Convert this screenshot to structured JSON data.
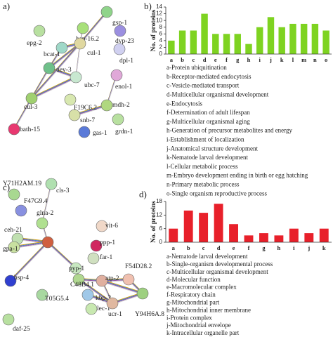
{
  "networks": [
    {
      "panel_label": "a)",
      "nodes": [
        "gsp-1",
        "hsp-16.2",
        "epg-2",
        "dyp-23",
        "dpl-1",
        "bcat-1",
        "cul-1",
        "uev-3",
        "ubc-7",
        "enol-1",
        "F19C6.2",
        "mdh-2",
        "cul-3",
        "snb-7",
        "gas-1",
        "grdn-1",
        "bath-15"
      ]
    },
    {
      "panel_label": "c)",
      "nodes": [
        "Y71H2AM.19",
        "cls-3",
        "F47G9.4",
        "glna-2",
        "vit-6",
        "ppp-1",
        "ceh-21",
        "far-1",
        "gpa-1",
        "pyp-1",
        "atp-2",
        "F54D28.2",
        "C48B4.1",
        "hsp-4",
        "T05G5.4",
        "kbp-3",
        "lec-1",
        "ucr-1",
        "Y94H6A.8",
        "daf-25"
      ]
    }
  ],
  "chart_data": [
    {
      "type": "bar",
      "panel_label": "b)",
      "ylabel": "No. of proteins",
      "categories": [
        "a",
        "b",
        "c",
        "d",
        "e",
        "f",
        "g",
        "h",
        "i",
        "j",
        "k",
        "l",
        "m",
        "n",
        "o"
      ],
      "values": [
        4,
        7,
        7,
        12,
        6,
        6,
        6,
        3,
        8,
        11,
        8,
        9,
        9,
        9,
        7
      ],
      "color": "#7ed321",
      "ylim": [
        0,
        14
      ],
      "yticks": [
        0,
        2,
        4,
        6,
        8,
        10,
        12,
        14
      ],
      "descriptions": [
        "a-Protein ubiquitination",
        "b-Receptor-mediated endocytosis",
        "c-Vesicle-mediated transport",
        "d-Multicellular organismal development",
        "e-Endocytosis",
        "f-Determination of adult lifespan",
        "g-Multicellular organismal aging",
        "h-Generation of precursor metabolites and energy",
        "i-Establishment of localization",
        "j-Anatomical structure development",
        "k-Nematode larval development",
        "l-Cellular metabolic process",
        "m-Embryo development ending in birth or egg hatching",
        "n-Primary metabolic process",
        "o-Single organism reproductive process"
      ]
    },
    {
      "type": "bar",
      "panel_label": "d)",
      "ylabel": "No. of proteins",
      "categories": [
        "a",
        "b",
        "c",
        "d",
        "e",
        "f",
        "g",
        "h",
        "i",
        "j",
        "k"
      ],
      "values": [
        6,
        14,
        13,
        17,
        8,
        3,
        4,
        3,
        6,
        4,
        6
      ],
      "color": "#e8202a",
      "ylim": [
        0,
        18
      ],
      "yticks": [
        0,
        6,
        12,
        18
      ],
      "descriptions": [
        "a-Nematode larval development",
        "b-Single-organism developmental process",
        "c-Multicellular organismal development",
        "d-Molecular function",
        "e-Macromolecular complex",
        "f-Respiratory chain",
        "g-Mitochondrial part",
        "h-Mitochondrial inner membrane",
        "i-Protein complex",
        "j-Mitochondrial envelope",
        "k-Intracellular organelle part"
      ]
    }
  ]
}
